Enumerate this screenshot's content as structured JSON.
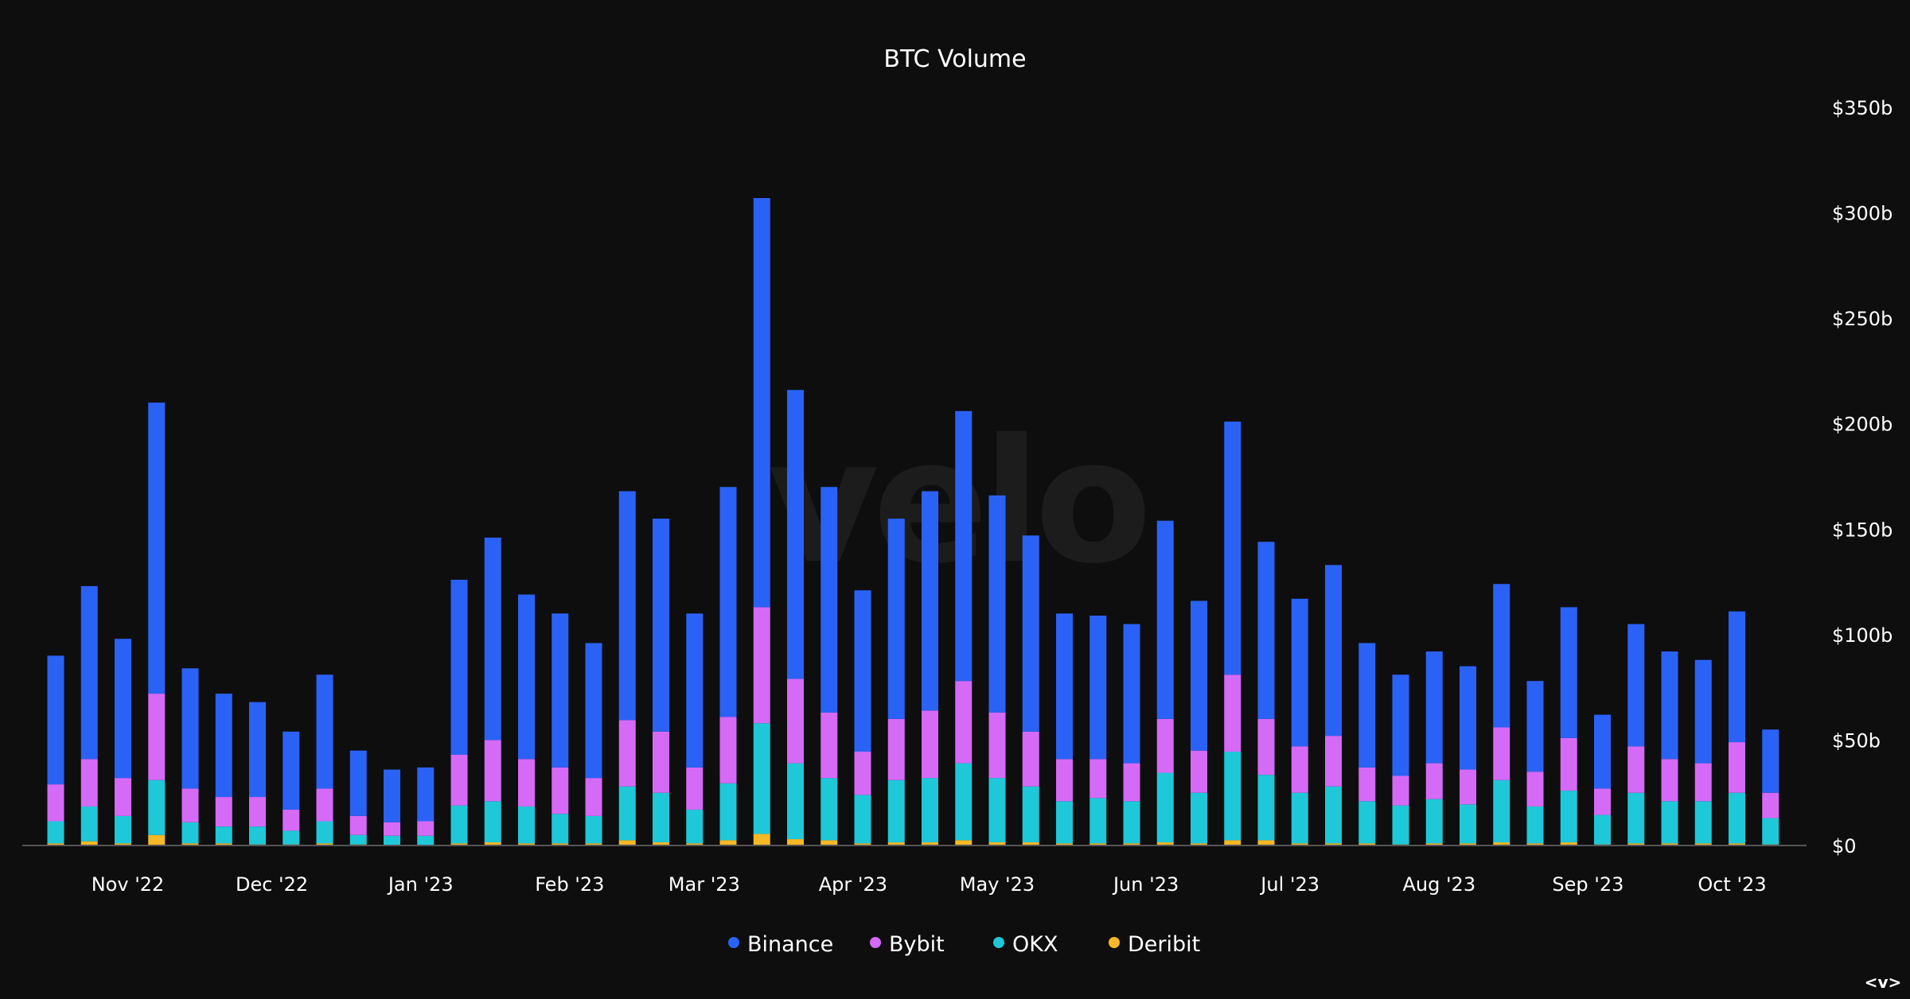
{
  "chart_data": {
    "type": "bar",
    "stacked": true,
    "title": "BTC Volume",
    "xlabel": "",
    "ylabel": "",
    "ylim": [
      0,
      350
    ],
    "yticks": [
      "$0",
      "$50b",
      "$100b",
      "$150b",
      "$200b",
      "$250b",
      "$300b",
      "$350b"
    ],
    "ytick_values": [
      0,
      50,
      100,
      150,
      200,
      250,
      300,
      350
    ],
    "y_unit": "billions USD",
    "grid": false,
    "legend_position": "bottom",
    "watermark": "velo",
    "xticks": [
      {
        "label": "Nov '22",
        "date": "2022-11-01"
      },
      {
        "label": "Dec '22",
        "date": "2022-12-01"
      },
      {
        "label": "Jan '23",
        "date": "2023-01-01"
      },
      {
        "label": "Feb '23",
        "date": "2023-02-01"
      },
      {
        "label": "Mar '23",
        "date": "2023-03-01"
      },
      {
        "label": "Apr '23",
        "date": "2023-04-01"
      },
      {
        "label": "May '23",
        "date": "2023-05-01"
      },
      {
        "label": "Jun '23",
        "date": "2023-06-01"
      },
      {
        "label": "Jul '23",
        "date": "2023-07-01"
      },
      {
        "label": "Aug '23",
        "date": "2023-08-01"
      },
      {
        "label": "Sep '23",
        "date": "2023-09-01"
      },
      {
        "label": "Oct '23",
        "date": "2023-10-01"
      }
    ],
    "x": [
      "2022-10-17",
      "2022-10-24",
      "2022-10-31",
      "2022-11-07",
      "2022-11-14",
      "2022-11-21",
      "2022-11-28",
      "2022-12-05",
      "2022-12-12",
      "2022-12-19",
      "2022-12-26",
      "2023-01-02",
      "2023-01-09",
      "2023-01-16",
      "2023-01-23",
      "2023-01-30",
      "2023-02-06",
      "2023-02-13",
      "2023-02-20",
      "2023-02-27",
      "2023-03-06",
      "2023-03-13",
      "2023-03-20",
      "2023-03-27",
      "2023-04-03",
      "2023-04-10",
      "2023-04-17",
      "2023-04-24",
      "2023-05-01",
      "2023-05-08",
      "2023-05-15",
      "2023-05-22",
      "2023-05-29",
      "2023-06-05",
      "2023-06-12",
      "2023-06-19",
      "2023-06-26",
      "2023-07-03",
      "2023-07-10",
      "2023-07-17",
      "2023-07-24",
      "2023-07-31",
      "2023-08-07",
      "2023-08-14",
      "2023-08-21",
      "2023-08-28",
      "2023-09-04",
      "2023-09-11",
      "2023-09-18",
      "2023-09-25",
      "2023-10-02",
      "2023-10-09"
    ],
    "series": [
      {
        "name": "Deribit",
        "color": "#f7b825",
        "values": [
          1,
          2,
          1,
          5,
          1,
          1,
          0.5,
          0.5,
          1,
          0.5,
          0.3,
          0.3,
          1,
          1.5,
          1,
          1,
          1,
          2.5,
          1.5,
          1,
          2.5,
          5.5,
          3,
          2.5,
          1,
          1.5,
          1.5,
          2.5,
          1.5,
          1.5,
          1,
          1,
          1,
          1.5,
          1,
          2.5,
          2.5,
          1,
          1,
          1,
          0.5,
          1,
          1,
          1.5,
          1,
          1.5,
          0.5,
          1,
          1,
          1,
          1,
          0.5
        ]
      },
      {
        "name": "OKX",
        "color": "#1ec8d8",
        "values": [
          10.5,
          16.5,
          13,
          26,
          10,
          8,
          8.5,
          6.5,
          10.5,
          4.5,
          4.3,
          4.3,
          18,
          19.5,
          17.5,
          14,
          13,
          25.5,
          23.5,
          16,
          27,
          52.5,
          36,
          29.5,
          23,
          29.5,
          30.5,
          36.5,
          30.5,
          26.5,
          20,
          21.5,
          20,
          33,
          24,
          42,
          31,
          24,
          27,
          20,
          18.5,
          21,
          18.5,
          29.5,
          17.5,
          24.5,
          14,
          24,
          20,
          20,
          24,
          12.5
        ]
      },
      {
        "name": "Bybit",
        "color": "#d56af7",
        "values": [
          17.5,
          22.5,
          18,
          41,
          16,
          14,
          14,
          10,
          15.5,
          9,
          6.4,
          6.9,
          24,
          29,
          22.5,
          22,
          18,
          31.5,
          29,
          20,
          31.5,
          55,
          40,
          31,
          20.5,
          29,
          32,
          39,
          31,
          26,
          20,
          18.5,
          18,
          25.5,
          20,
          36.5,
          26.5,
          22,
          24,
          16,
          14,
          17,
          16.5,
          25,
          16.5,
          25,
          12.5,
          22,
          20,
          18,
          24,
          12
        ]
      },
      {
        "name": "Binance",
        "color": "#2b62f6",
        "values": [
          61,
          82,
          66,
          138,
          57,
          49,
          45,
          37,
          54,
          31,
          25,
          25.5,
          83,
          96,
          78,
          73,
          64,
          108.5,
          101,
          73,
          109,
          194,
          137,
          107,
          76.5,
          95,
          104,
          128,
          103,
          93,
          69,
          68,
          66,
          94,
          71,
          120,
          84,
          70,
          81,
          59,
          48,
          53,
          49,
          68,
          43,
          62,
          35,
          58,
          51,
          49,
          62,
          30
        ]
      }
    ],
    "legend": [
      "Binance",
      "Bybit",
      "OKX",
      "Deribit"
    ]
  },
  "corner_nav": "<v>"
}
